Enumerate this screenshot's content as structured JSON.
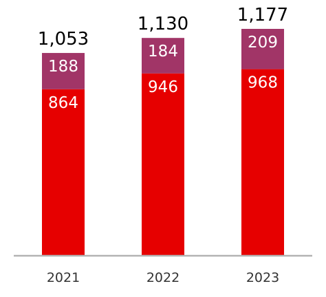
{
  "chart_data": {
    "type": "bar",
    "stacked": true,
    "title": "",
    "xlabel": "",
    "ylabel": "",
    "categories": [
      "2021",
      "2022",
      "2023"
    ],
    "series": [
      {
        "values": [
          864,
          946,
          968
        ],
        "color": "#e60000"
      },
      {
        "values": [
          188,
          184,
          209
        ],
        "color": "#a13567"
      }
    ],
    "totals": [
      "1,053",
      "1,130",
      "1,177"
    ],
    "segment_labels": [
      [
        "864",
        "946",
        "968"
      ],
      [
        "188",
        "184",
        "209"
      ]
    ],
    "ylim": [
      0,
      1177
    ],
    "grid": false,
    "legend": "none",
    "axis_color": "#b3b3b3"
  }
}
